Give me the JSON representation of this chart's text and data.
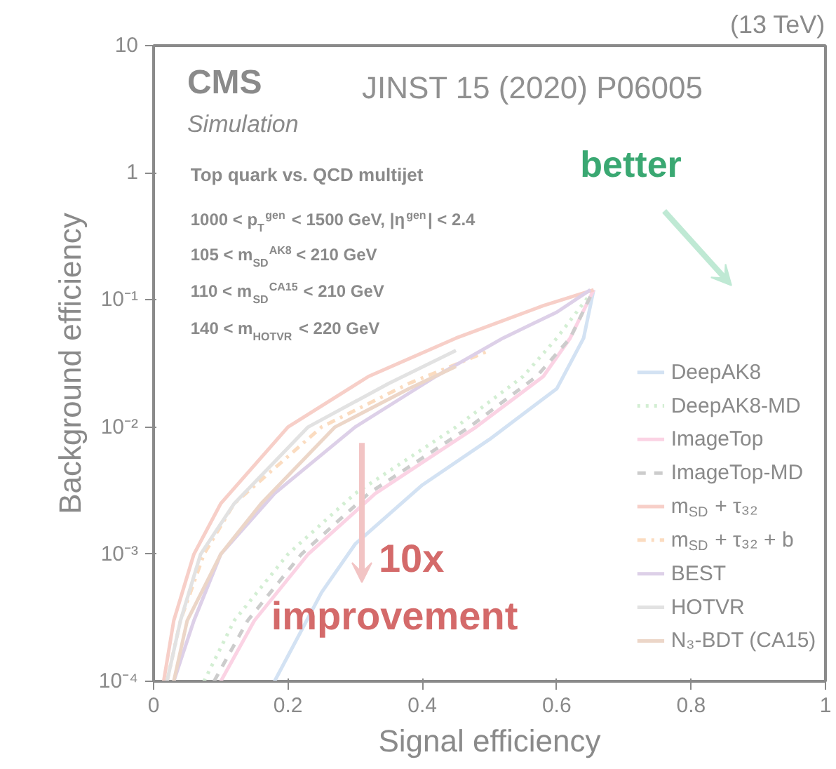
{
  "chart_data": {
    "type": "line",
    "title": "(13 TeV)",
    "xlabel": "Signal efficiency",
    "ylabel": "Background efficiency",
    "log": "y",
    "grid": false,
    "legend": "bottom right",
    "marker": "none",
    "xlim": [
      0,
      1
    ],
    "xticks": [
      0,
      0.2,
      0.4,
      0.6,
      0.8,
      1
    ],
    "ylim": [
      0.0001,
      10
    ],
    "yticks": [
      {
        "value": 0.0001,
        "label": "10⁻⁴"
      },
      {
        "value": 0.001,
        "label": "10⁻³"
      },
      {
        "value": 0.01,
        "label": "10⁻²"
      },
      {
        "value": 0.1,
        "label": "10⁻¹"
      },
      1,
      10
    ],
    "annotations": [
      "CMS",
      "Simulation",
      "Top quark vs. QCD multijet",
      "1000 < p$_{T}$$^{gen}$ < 1500 GeV, |η$^{gen}$| < 2.4",
      "105 < m$_{SD}$$^{AK8}$ < 210 GeV",
      "110 < m$_{SD}$$^{CA15}$ < 210 GeV",
      "140 < m$_{HOTVR}$ < 220 GeV",
      "JINST 15 (2020) P06005",
      "better",
      "10x",
      "improvement"
    ],
    "series": [
      {
        "name": "DeepAK8",
        "color": "#d3e2f3",
        "line_style": "solid",
        "x": [
          0.18,
          0.25,
          0.3,
          0.4,
          0.5,
          0.6,
          0.64,
          0.655
        ],
        "values": [
          0.0001,
          0.0005,
          0.0012,
          0.0035,
          0.008,
          0.02,
          0.05,
          0.12
        ]
      },
      {
        "name": "DeepAK8-MD",
        "color": "#d3eed3",
        "line_style": "dotted",
        "x": [
          0.075,
          0.12,
          0.2,
          0.3,
          0.45,
          0.55,
          0.6,
          0.655
        ],
        "values": [
          0.0001,
          0.0003,
          0.001,
          0.003,
          0.01,
          0.025,
          0.05,
          0.12
        ]
      },
      {
        "name": "ImageTop",
        "color": "#fbd3e4",
        "line_style": "solid",
        "x": [
          0.1,
          0.15,
          0.23,
          0.33,
          0.48,
          0.58,
          0.62,
          0.655
        ],
        "values": [
          0.0001,
          0.0003,
          0.001,
          0.003,
          0.01,
          0.025,
          0.05,
          0.12
        ]
      },
      {
        "name": "ImageTop-MD",
        "color": "#cccccc",
        "line_style": "dashed",
        "x": [
          0.09,
          0.14,
          0.22,
          0.32,
          0.47,
          0.57,
          0.62,
          0.655
        ],
        "values": [
          0.0001,
          0.0003,
          0.001,
          0.003,
          0.01,
          0.025,
          0.05,
          0.12
        ]
      },
      {
        "name": "m$_{SD}$ + τ₃₂",
        "color": "#f7cfc8",
        "line_style": "solid",
        "x": [
          0.015,
          0.03,
          0.06,
          0.1,
          0.2,
          0.32,
          0.45,
          0.58,
          0.655
        ],
        "values": [
          0.0001,
          0.0003,
          0.001,
          0.0025,
          0.01,
          0.025,
          0.05,
          0.09,
          0.12
        ]
      },
      {
        "name": "m$_{SD}$ + τ₃₂ + b",
        "color": "#fbdcc0",
        "line_style": "dashdot",
        "x": [
          0.02,
          0.04,
          0.075,
          0.12,
          0.25,
          0.38,
          0.5
        ],
        "values": [
          0.0001,
          0.0003,
          0.001,
          0.0025,
          0.01,
          0.022,
          0.04
        ]
      },
      {
        "name": "BEST",
        "color": "#ddd0e8",
        "line_style": "solid",
        "x": [
          0.03,
          0.06,
          0.1,
          0.18,
          0.3,
          0.42,
          0.52,
          0.6,
          0.65
        ],
        "values": [
          0.0001,
          0.0003,
          0.001,
          0.003,
          0.01,
          0.025,
          0.05,
          0.08,
          0.12
        ]
      },
      {
        "name": "HOTVR",
        "color": "#e2e2e2",
        "line_style": "solid",
        "x": [
          0.02,
          0.04,
          0.07,
          0.12,
          0.23,
          0.35,
          0.45
        ],
        "values": [
          0.0001,
          0.0003,
          0.001,
          0.0025,
          0.01,
          0.022,
          0.04
        ]
      },
      {
        "name": "N₃-BDT (CA15)",
        "color": "#ecd6c8",
        "line_style": "solid",
        "x": [
          0.03,
          0.05,
          0.1,
          0.16,
          0.27,
          0.38,
          0.45
        ],
        "values": [
          0.0001,
          0.0003,
          0.001,
          0.0025,
          0.01,
          0.02,
          0.03
        ]
      }
    ]
  }
}
